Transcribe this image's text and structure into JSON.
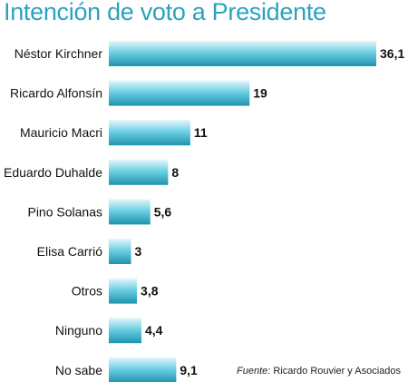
{
  "colors": {
    "title": "#2aa3bf",
    "bar_light": "#e6f7fb",
    "bar_mid": "#6fd0e4",
    "bar_dark": "#1e93ad",
    "text": "#111111"
  },
  "chart_data": {
    "type": "bar",
    "orientation": "horizontal",
    "title": "Intención de voto a Presidente",
    "categories": [
      "Néstor Kirchner",
      "Ricardo Alfonsín",
      "Mauricio Macri",
      "Eduardo Duhalde",
      "Pino Solanas",
      "Elisa Carrió",
      "Otros",
      "Ninguno",
      "No sabe"
    ],
    "values": [
      36.1,
      19,
      11,
      8,
      5.6,
      3,
      3.8,
      4.4,
      9.1
    ],
    "value_labels": [
      "36,1",
      "19",
      "11",
      "8",
      "5,6",
      "3",
      "3,8",
      "4,4",
      "9,1"
    ],
    "xlim": [
      0,
      36.1
    ],
    "grid": false,
    "legend": "none"
  },
  "source": {
    "label": "Fuente:",
    "text": "Ricardo Rouvier y Asociados"
  }
}
